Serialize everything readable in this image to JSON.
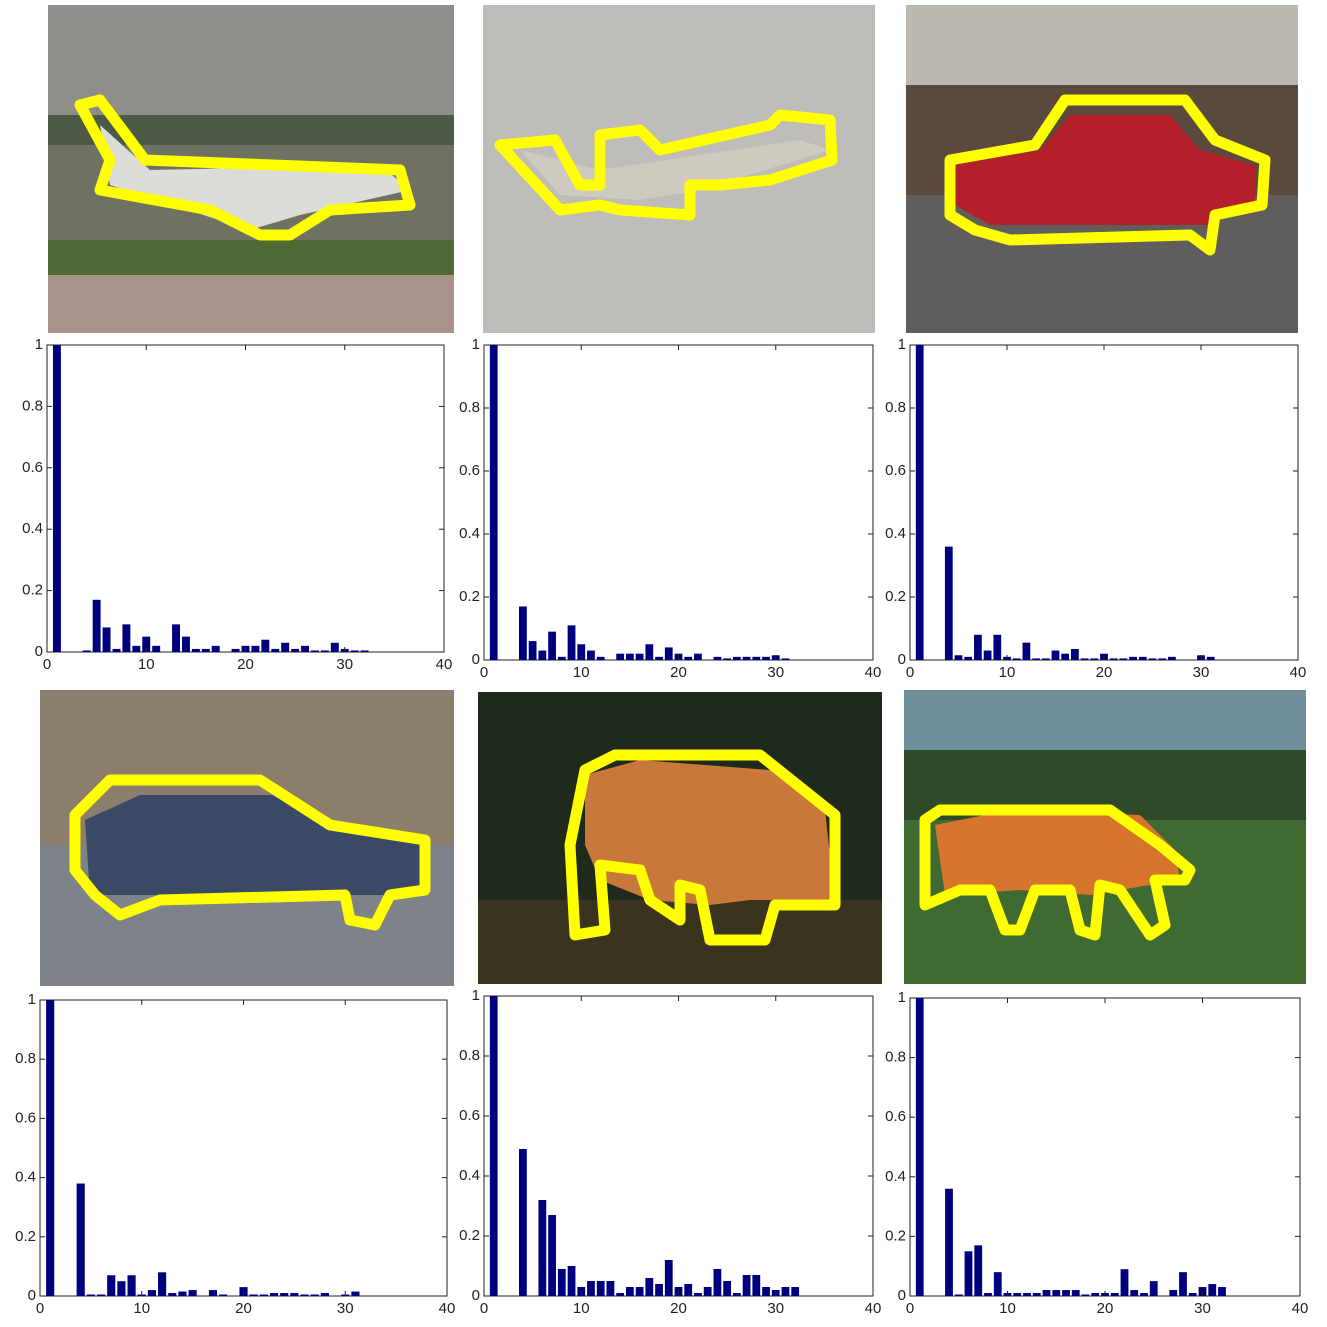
{
  "chart_data": [
    {
      "type": "bar",
      "x": [
        1,
        2,
        3,
        4,
        5,
        6,
        7,
        8,
        9,
        10,
        11,
        12,
        13,
        14,
        15,
        16,
        17,
        18,
        19,
        20,
        21,
        22,
        23,
        24,
        25,
        26,
        27,
        28,
        29,
        30,
        31,
        32
      ],
      "values": [
        1.0,
        0,
        0,
        0.005,
        0.17,
        0.08,
        0.01,
        0.09,
        0.02,
        0.05,
        0.02,
        0,
        0.09,
        0.05,
        0.01,
        0.01,
        0.02,
        0,
        0.01,
        0.02,
        0.02,
        0.04,
        0.01,
        0.03,
        0.01,
        0.02,
        0.005,
        0.005,
        0.03,
        0.01,
        0.005,
        0.005
      ],
      "color": "#00007f",
      "xlim": [
        0,
        40
      ],
      "ylim": [
        0,
        1
      ],
      "xticks": [
        0,
        10,
        20,
        30,
        40
      ],
      "yticks": [
        0,
        0.2,
        0.4,
        0.6,
        0.8,
        1
      ]
    },
    {
      "type": "bar",
      "x": [
        1,
        2,
        3,
        4,
        5,
        6,
        7,
        8,
        9,
        10,
        11,
        12,
        13,
        14,
        15,
        16,
        17,
        18,
        19,
        20,
        21,
        22,
        23,
        24,
        25,
        26,
        27,
        28,
        29,
        30,
        31,
        32
      ],
      "values": [
        1.0,
        0,
        0,
        0.17,
        0.06,
        0.03,
        0.09,
        0.01,
        0.11,
        0.05,
        0.03,
        0.01,
        0,
        0.02,
        0.02,
        0.02,
        0.05,
        0.01,
        0.04,
        0.02,
        0.01,
        0.02,
        0,
        0.01,
        0.005,
        0.01,
        0.01,
        0.01,
        0.01,
        0.015,
        0.005,
        0
      ],
      "color": "#00007f",
      "xlim": [
        0,
        40
      ],
      "ylim": [
        0,
        1
      ],
      "xticks": [
        0,
        10,
        20,
        30,
        40
      ],
      "yticks": [
        0,
        0.2,
        0.4,
        0.6,
        0.8,
        1
      ]
    },
    {
      "type": "bar",
      "x": [
        1,
        2,
        3,
        4,
        5,
        6,
        7,
        8,
        9,
        10,
        11,
        12,
        13,
        14,
        15,
        16,
        17,
        18,
        19,
        20,
        21,
        22,
        23,
        24,
        25,
        26,
        27,
        28,
        29,
        30,
        31,
        32
      ],
      "values": [
        1.0,
        0,
        0,
        0.36,
        0.015,
        0.01,
        0.08,
        0.03,
        0.08,
        0.01,
        0.005,
        0.055,
        0.005,
        0.005,
        0.03,
        0.02,
        0.035,
        0.005,
        0.005,
        0.02,
        0.005,
        0.005,
        0.01,
        0.01,
        0.005,
        0.005,
        0.01,
        0,
        0,
        0.015,
        0.01,
        0
      ],
      "color": "#00007f",
      "xlim": [
        0,
        40
      ],
      "ylim": [
        0,
        1
      ],
      "xticks": [
        0,
        10,
        20,
        30,
        40
      ],
      "yticks": [
        0,
        0.2,
        0.4,
        0.6,
        0.8,
        1
      ]
    },
    {
      "type": "bar",
      "x": [
        1,
        2,
        3,
        4,
        5,
        6,
        7,
        8,
        9,
        10,
        11,
        12,
        13,
        14,
        15,
        16,
        17,
        18,
        19,
        20,
        21,
        22,
        23,
        24,
        25,
        26,
        27,
        28,
        29,
        30,
        31,
        32
      ],
      "values": [
        1.0,
        0,
        0,
        0.38,
        0.005,
        0.005,
        0.07,
        0.05,
        0.07,
        0.005,
        0.02,
        0.08,
        0.01,
        0.015,
        0.02,
        0,
        0.02,
        0.005,
        0,
        0.03,
        0.005,
        0.005,
        0.01,
        0.01,
        0.01,
        0.005,
        0.005,
        0.01,
        0,
        0.005,
        0.015,
        0
      ],
      "color": "#00007f",
      "xlim": [
        0,
        40
      ],
      "ylim": [
        0,
        1
      ],
      "xticks": [
        0,
        10,
        20,
        30,
        40
      ],
      "yticks": [
        0,
        0.2,
        0.4,
        0.6,
        0.8,
        1
      ]
    },
    {
      "type": "bar",
      "x": [
        1,
        2,
        3,
        4,
        5,
        6,
        7,
        8,
        9,
        10,
        11,
        12,
        13,
        14,
        15,
        16,
        17,
        18,
        19,
        20,
        21,
        22,
        23,
        24,
        25,
        26,
        27,
        28,
        29,
        30,
        31,
        32
      ],
      "values": [
        1.0,
        0,
        0,
        0.49,
        0,
        0.32,
        0.27,
        0.09,
        0.1,
        0.03,
        0.05,
        0.05,
        0.05,
        0.01,
        0.03,
        0.03,
        0.06,
        0.04,
        0.12,
        0.03,
        0.04,
        0.01,
        0.03,
        0.09,
        0.05,
        0.01,
        0.07,
        0.07,
        0.03,
        0.02,
        0.03,
        0.03
      ],
      "color": "#00007f",
      "xlim": [
        0,
        40
      ],
      "ylim": [
        0,
        1
      ],
      "xticks": [
        0,
        10,
        20,
        30,
        40
      ],
      "yticks": [
        0,
        0.2,
        0.4,
        0.6,
        0.8,
        1
      ]
    },
    {
      "type": "bar",
      "x": [
        1,
        2,
        3,
        4,
        5,
        6,
        7,
        8,
        9,
        10,
        11,
        12,
        13,
        14,
        15,
        16,
        17,
        18,
        19,
        20,
        21,
        22,
        23,
        24,
        25,
        26,
        27,
        28,
        29,
        30,
        31,
        32
      ],
      "values": [
        1.0,
        0,
        0,
        0.36,
        0.005,
        0.15,
        0.17,
        0.01,
        0.08,
        0.01,
        0.01,
        0.01,
        0.01,
        0.02,
        0.02,
        0.02,
        0.02,
        0.005,
        0.01,
        0.01,
        0.01,
        0.09,
        0.02,
        0.01,
        0.05,
        0,
        0.02,
        0.08,
        0.01,
        0.03,
        0.04,
        0.03
      ],
      "color": "#00007f",
      "xlim": [
        0,
        40
      ],
      "ylim": [
        0,
        1
      ],
      "xticks": [
        0,
        10,
        20,
        30,
        40
      ],
      "yticks": [
        0,
        0.2,
        0.4,
        0.6,
        0.8,
        1
      ]
    }
  ]
}
